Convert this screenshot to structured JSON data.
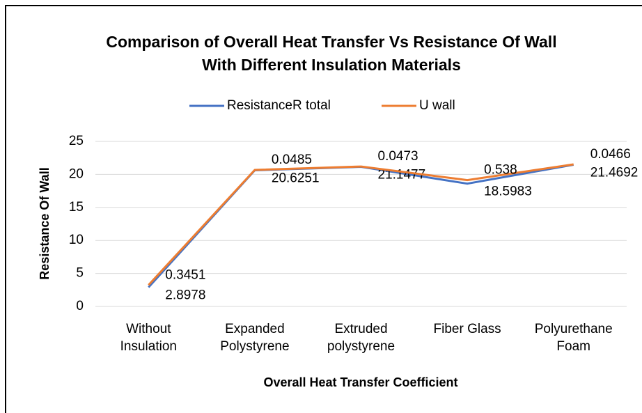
{
  "chart_data": {
    "type": "line",
    "stacked": true,
    "title": "Comparison of Overall Heat Transfer Vs Resistance Of Wall With Different Insulation Materials",
    "xlabel": "Overall Heat Transfer Coefficient",
    "ylabel": "Resistance Of Wall",
    "categories": [
      "Without Insulation",
      "Expanded Polystyrene",
      "Extruded polystyrene",
      "Fiber Glass",
      "Polyurethane Foam"
    ],
    "series": [
      {
        "name": "ResistanceR total",
        "color": "#4472c4",
        "values": [
          2.8978,
          20.6251,
          21.1477,
          18.5983,
          21.4692
        ]
      },
      {
        "name": "U wall",
        "color": "#ed7d31",
        "values": [
          0.3451,
          0.0485,
          0.0473,
          0.538,
          0.0466
        ]
      }
    ],
    "ylim": [
      0,
      25
    ],
    "yticks": [
      0,
      5,
      10,
      15,
      20,
      25
    ],
    "grid": true,
    "legend": "top"
  }
}
